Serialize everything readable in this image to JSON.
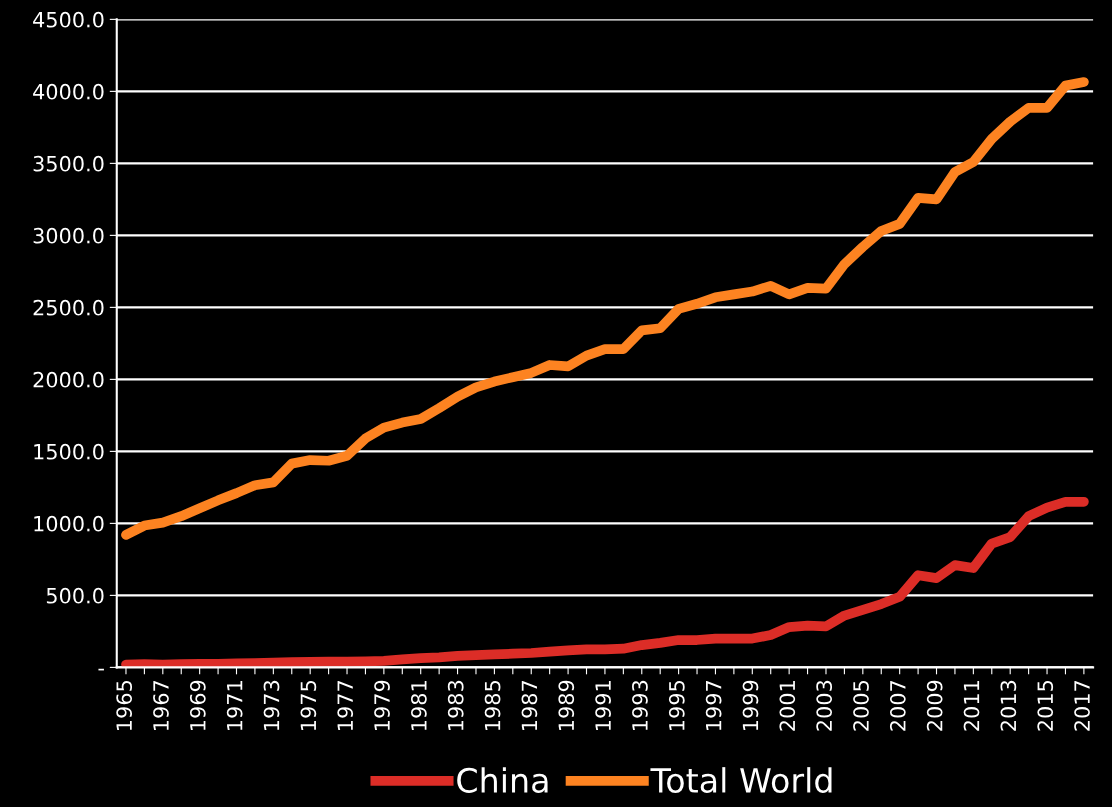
{
  "chart_data": {
    "type": "line",
    "categories": [
      "1965",
      null,
      "1967",
      null,
      "1969",
      null,
      "1971",
      null,
      "1973",
      null,
      "1975",
      null,
      "1977",
      null,
      "1979",
      null,
      "1981",
      null,
      "1983",
      null,
      "1985",
      null,
      "1987",
      null,
      "1989",
      null,
      "1991",
      null,
      "1993",
      null,
      "1995",
      null,
      "1997",
      null,
      "1999",
      null,
      "2001",
      null,
      "2003",
      null,
      "2005",
      null,
      "2007",
      null,
      "2009",
      null,
      "2011",
      null,
      "2013",
      null,
      "2015",
      null,
      "2017"
    ],
    "series": [
      {
        "name": "China",
        "color": "#dc2d27",
        "values": [
          20,
          22,
          20,
          22,
          24,
          25,
          28,
          30,
          33,
          36,
          38,
          40,
          40,
          42,
          45,
          55,
          65,
          70,
          80,
          85,
          90,
          95,
          100,
          110,
          118,
          125,
          125,
          130,
          155,
          170,
          190,
          190,
          200,
          200,
          200,
          225,
          280,
          290,
          285,
          360,
          400,
          440,
          490,
          640,
          620,
          710,
          690,
          860,
          905,
          1050,
          1110,
          1150,
          1150
        ]
      },
      {
        "name": "Total World",
        "color": "#fd8321",
        "values": [
          920,
          985,
          1005,
          1050,
          1105,
          1160,
          1210,
          1265,
          1285,
          1415,
          1440,
          1435,
          1470,
          1590,
          1665,
          1700,
          1725,
          1800,
          1880,
          1945,
          1985,
          2015,
          2045,
          2100,
          2090,
          2165,
          2210,
          2210,
          2340,
          2355,
          2490,
          2525,
          2570,
          2590,
          2610,
          2650,
          2590,
          2635,
          2630,
          2800,
          2920,
          3030,
          3080,
          3260,
          3250,
          3440,
          3510,
          3670,
          3790,
          3885,
          3885,
          4040,
          4065
        ]
      }
    ],
    "ylim": [
      0,
      4500
    ],
    "yticks": [
      {
        "value": 0,
        "label": "-"
      },
      {
        "value": 500,
        "label": "500.0"
      },
      {
        "value": 1000,
        "label": "1000.0"
      },
      {
        "value": 1500,
        "label": "1500.0"
      },
      {
        "value": 2000,
        "label": "2000.0"
      },
      {
        "value": 2500,
        "label": "2500.0"
      },
      {
        "value": 3000,
        "label": "3000.0"
      },
      {
        "value": 3500,
        "label": "3500.0"
      },
      {
        "value": 4000,
        "label": "4000.0"
      },
      {
        "value": 4500,
        "label": "4500.0"
      }
    ],
    "grid": "y",
    "legend": "bottom",
    "marker": "none",
    "line_style": "solid"
  }
}
